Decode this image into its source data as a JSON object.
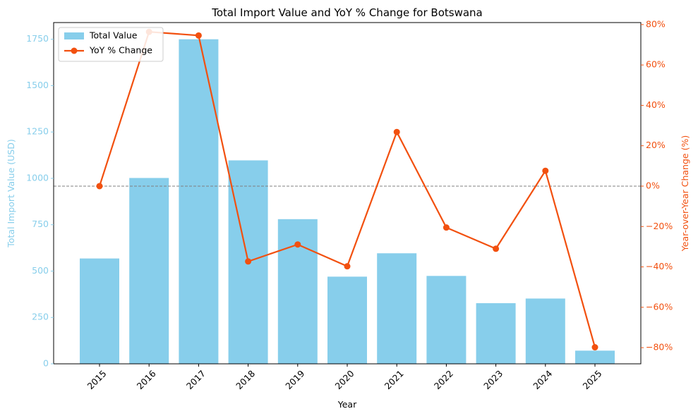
{
  "chart_data": {
    "type": "bar",
    "title": "Total Import Value and YoY % Change for Botswana",
    "xlabel": "Year",
    "ylabel": "Total Import Value (USD)",
    "y2label": "Year-over-Year Change (%)",
    "categories": [
      "2015",
      "2016",
      "2017",
      "2018",
      "2019",
      "2020",
      "2021",
      "2022",
      "2023",
      "2024",
      "2025"
    ],
    "series": [
      {
        "name": "Total Value",
        "type": "bar",
        "axis": "left",
        "color": "#87CEEB",
        "values": [
          568,
          1002,
          1750,
          1097,
          780,
          470,
          596,
          474,
          327,
          352,
          71
        ]
      },
      {
        "name": "YoY % Change",
        "type": "line",
        "axis": "right",
        "color": "#F2500F",
        "values": [
          0,
          76.4,
          74.6,
          -37.3,
          -28.9,
          -39.7,
          26.8,
          -20.5,
          -31.0,
          7.6,
          -79.8
        ]
      }
    ],
    "ylim": [
      0,
      1840
    ],
    "yticks": [
      0,
      250,
      500,
      750,
      1000,
      1250,
      1500,
      1750
    ],
    "y2lim": [
      -88,
      81
    ],
    "y2ticks": [
      -80,
      -60,
      -40,
      -20,
      0,
      20,
      40,
      60,
      80
    ],
    "y2tick_suffix": "%",
    "left_axis_color": "#87CEEB",
    "right_axis_color": "#F2500F",
    "reference_line": 0,
    "legend": "top-left",
    "grid": false
  }
}
